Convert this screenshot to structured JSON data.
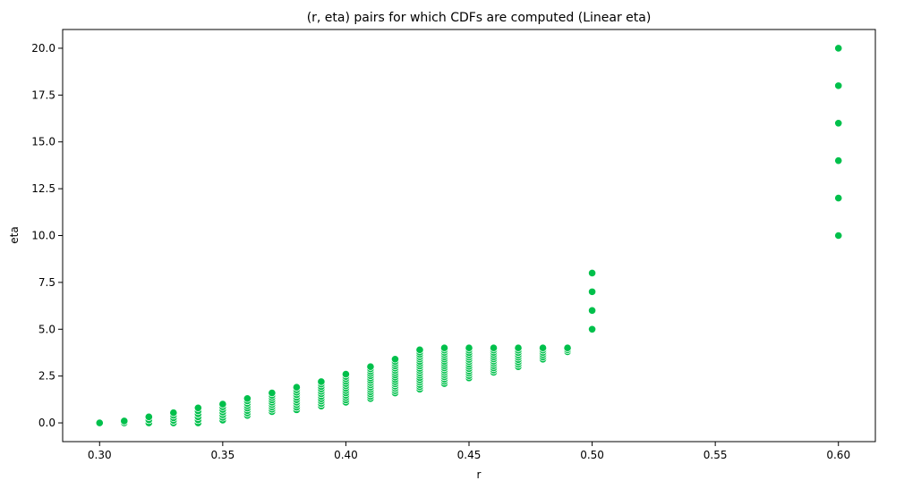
{
  "chart_data": {
    "type": "scatter",
    "title": "(r, eta) pairs for which CDFs are computed (Linear eta)",
    "xlabel": "r",
    "ylabel": "eta",
    "xlim": [
      0.285,
      0.615
    ],
    "ylim": [
      -1.0,
      21.0
    ],
    "xticks": [
      0.3,
      0.35,
      0.4,
      0.45,
      0.5,
      0.55,
      0.6
    ],
    "xtick_labels": [
      "0.30",
      "0.35",
      "0.40",
      "0.45",
      "0.50",
      "0.55",
      "0.60"
    ],
    "yticks": [
      0.0,
      2.5,
      5.0,
      7.5,
      10.0,
      12.5,
      15.0,
      17.5,
      20.0
    ],
    "ytick_labels": [
      "0.0",
      "2.5",
      "5.0",
      "7.5",
      "10.0",
      "12.5",
      "15.0",
      "17.5",
      "20.0"
    ],
    "grid": false,
    "marker_color": "#00c04b",
    "marker_edge_color": "#ffffff",
    "columns": [
      {
        "r": 0.3,
        "eta_min": 0.0,
        "eta_max": 0.0,
        "count": 1
      },
      {
        "r": 0.31,
        "eta_min": 0.0,
        "eta_max": 0.1,
        "count": 2
      },
      {
        "r": 0.32,
        "eta_min": 0.0,
        "eta_max": 0.32,
        "count": 3
      },
      {
        "r": 0.33,
        "eta_min": 0.0,
        "eta_max": 0.54,
        "count": 5
      },
      {
        "r": 0.34,
        "eta_min": 0.0,
        "eta_max": 0.8,
        "count": 6
      },
      {
        "r": 0.35,
        "eta_min": 0.15,
        "eta_max": 1.0,
        "count": 7
      },
      {
        "r": 0.36,
        "eta_min": 0.4,
        "eta_max": 1.3,
        "count": 8
      },
      {
        "r": 0.37,
        "eta_min": 0.6,
        "eta_max": 1.6,
        "count": 9
      },
      {
        "r": 0.38,
        "eta_min": 0.7,
        "eta_max": 1.9,
        "count": 10
      },
      {
        "r": 0.39,
        "eta_min": 0.9,
        "eta_max": 2.2,
        "count": 11
      },
      {
        "r": 0.4,
        "eta_min": 1.1,
        "eta_max": 2.6,
        "count": 13
      },
      {
        "r": 0.41,
        "eta_min": 1.3,
        "eta_max": 3.0,
        "count": 15
      },
      {
        "r": 0.42,
        "eta_min": 1.6,
        "eta_max": 3.4,
        "count": 16
      },
      {
        "r": 0.43,
        "eta_min": 1.8,
        "eta_max": 3.9,
        "count": 18
      },
      {
        "r": 0.44,
        "eta_min": 2.1,
        "eta_max": 4.0,
        "count": 17
      },
      {
        "r": 0.45,
        "eta_min": 2.4,
        "eta_max": 4.0,
        "count": 14
      },
      {
        "r": 0.46,
        "eta_min": 2.7,
        "eta_max": 4.0,
        "count": 12
      },
      {
        "r": 0.47,
        "eta_min": 3.0,
        "eta_max": 4.0,
        "count": 9
      },
      {
        "r": 0.48,
        "eta_min": 3.4,
        "eta_max": 4.0,
        "count": 6
      },
      {
        "r": 0.49,
        "eta_min": 3.8,
        "eta_max": 4.0,
        "count": 3
      }
    ],
    "points": [
      {
        "r": 0.5,
        "eta": 5.0
      },
      {
        "r": 0.5,
        "eta": 6.0
      },
      {
        "r": 0.5,
        "eta": 7.0
      },
      {
        "r": 0.5,
        "eta": 8.0
      },
      {
        "r": 0.6,
        "eta": 10.0
      },
      {
        "r": 0.6,
        "eta": 12.0
      },
      {
        "r": 0.6,
        "eta": 14.0
      },
      {
        "r": 0.6,
        "eta": 16.0
      },
      {
        "r": 0.6,
        "eta": 18.0
      },
      {
        "r": 0.6,
        "eta": 20.0
      }
    ]
  }
}
